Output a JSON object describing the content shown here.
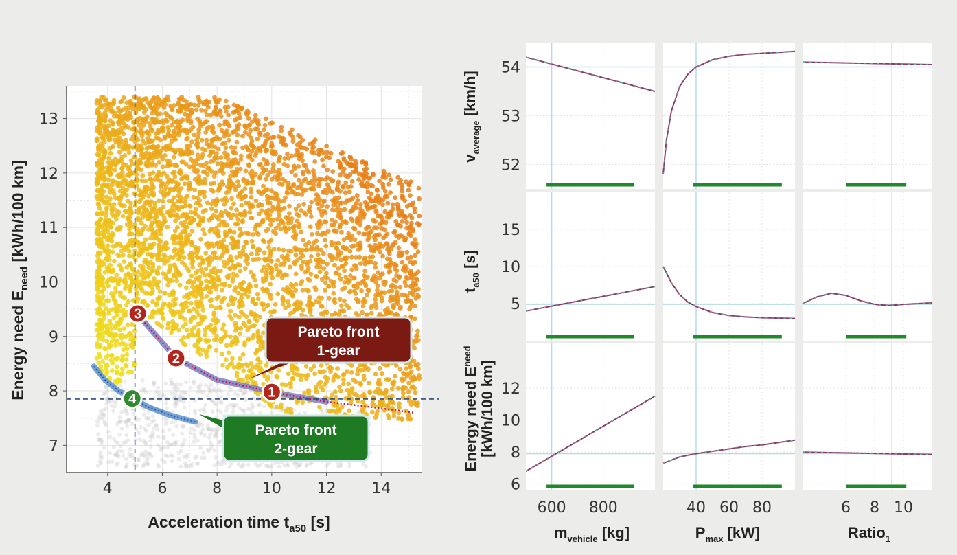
{
  "colors": {
    "background": "#ececeb",
    "panel": "#ffffff",
    "grid": "#e3e3e3",
    "scatter_low": "#f0ea1a",
    "scatter_high": "#e8801a",
    "dominated": "#c8c8c8",
    "front_1gear": "#7b7fc4",
    "front_1gear_line": "#c2185b",
    "front_2gear": "#5a8fcf",
    "callout_1gear": "#7a1a12",
    "callout_2gear": "#1e7a23",
    "marker_red": "#b3261e",
    "marker_green": "#2e8b2e",
    "ref_line": "#2d4a7a",
    "trace": "#8b3a6b",
    "range_bar": "#1f8a2a",
    "crosshair": "#b7dbe6"
  },
  "chart_data": [
    {
      "type": "scatter",
      "xlabel": "Acceleration time t",
      "xlabel_sub": "a50",
      "xlabel_unit": " [s]",
      "ylabel": "Energy need E",
      "ylabel_sub": "need",
      "ylabel_unit": " [kWh/100 km]",
      "xlim": [
        2.5,
        15.5
      ],
      "ylim": [
        6.5,
        13.6
      ],
      "xticks": [
        4,
        6,
        8,
        10,
        12,
        14
      ],
      "yticks": [
        7,
        8,
        9,
        10,
        11,
        12,
        13
      ],
      "reference_lines": {
        "x": 5,
        "y": 7.85
      },
      "pareto_front_1gear": {
        "label_line1": "Pareto front",
        "label_line2": "1-gear",
        "x": [
          5.1,
          6.5,
          8.0,
          10.0,
          12.0,
          14.0,
          15.2
        ],
        "y": [
          9.4,
          8.6,
          8.2,
          7.98,
          7.8,
          7.68,
          7.6
        ]
      },
      "pareto_front_2gear": {
        "label_line1": "Pareto front",
        "label_line2": "2-gear",
        "x": [
          3.5,
          3.9,
          4.4,
          4.9,
          5.5,
          6.3,
          7.2
        ],
        "y": [
          8.45,
          8.2,
          8.0,
          7.86,
          7.7,
          7.55,
          7.43
        ]
      },
      "markers": [
        {
          "label": "1",
          "x": 10.0,
          "y": 7.98,
          "color": "red"
        },
        {
          "label": "2",
          "x": 6.5,
          "y": 8.6,
          "color": "red"
        },
        {
          "label": "3",
          "x": 5.1,
          "y": 9.42,
          "color": "red"
        },
        {
          "label": "4",
          "x": 4.9,
          "y": 7.86,
          "color": "green"
        }
      ]
    },
    {
      "type": "line",
      "description_grid": "sensitivity plot matrix",
      "rows": [
        {
          "ylabel": "v",
          "ylabel_sub": "average",
          "ylabel_unit": " [km/h]",
          "ylim": [
            51.5,
            54.5
          ],
          "yticks": [
            52,
            53,
            54
          ],
          "ref_y": 54.0
        },
        {
          "ylabel": "t",
          "ylabel_sub": "a50",
          "ylabel_unit": " [s]",
          "ylim": [
            0,
            20
          ],
          "yticks": [
            5,
            10,
            15
          ],
          "ref_y": 4.9
        },
        {
          "ylabel": "Energy need E",
          "ylabel_sub": "need",
          "ylabel_unit": "[kWh/100 km]",
          "ylim": [
            5.6,
            14.8
          ],
          "yticks": [
            6,
            8,
            10,
            12
          ],
          "ref_y": 7.9
        }
      ],
      "columns": [
        {
          "xlabel": "m",
          "xlabel_sub": "vehicle",
          "xlabel_unit": " [kg]",
          "xlim": [
            500,
            1000
          ],
          "xticks": [
            600,
            800
          ],
          "ref_x": 600,
          "range": [
            580,
            920
          ],
          "series": [
            {
              "x": [
                500,
                1000
              ],
              "y": [
                54.2,
                53.5
              ]
            },
            {
              "x": [
                500,
                1000
              ],
              "y": [
                4.0,
                7.3
              ]
            },
            {
              "x": [
                500,
                1000
              ],
              "y": [
                6.8,
                11.5
              ]
            }
          ]
        },
        {
          "xlabel": "P",
          "xlabel_sub": "max",
          "xlabel_unit": " [kW]",
          "xlim": [
            20,
            100
          ],
          "xticks": [
            40,
            60,
            80
          ],
          "ref_x": 40,
          "range": [
            38,
            92
          ],
          "series": [
            {
              "x": [
                20,
                22,
                25,
                30,
                35,
                40,
                50,
                60,
                70,
                80,
                90,
                100
              ],
              "y": [
                51.8,
                52.5,
                53.1,
                53.6,
                53.85,
                54.0,
                54.15,
                54.22,
                54.26,
                54.28,
                54.3,
                54.32
              ]
            },
            {
              "x": [
                20,
                25,
                30,
                35,
                40,
                50,
                60,
                70,
                80,
                90,
                100
              ],
              "y": [
                10.0,
                7.8,
                6.2,
                5.2,
                4.6,
                3.8,
                3.4,
                3.2,
                3.1,
                3.05,
                3.0
              ]
            },
            {
              "x": [
                20,
                30,
                40,
                50,
                60,
                70,
                80,
                90,
                100
              ],
              "y": [
                7.3,
                7.7,
                7.9,
                8.05,
                8.2,
                8.35,
                8.45,
                8.6,
                8.75
              ]
            }
          ]
        },
        {
          "xlabel": "Ratio",
          "xlabel_sub": "1",
          "xlabel_unit": "",
          "xlim": [
            3,
            12
          ],
          "xticks": [
            6,
            8,
            10
          ],
          "ref_x": 9.2,
          "range": [
            6.0,
            10.2
          ],
          "series": [
            {
              "x": [
                3,
                12
              ],
              "y": [
                54.1,
                54.05
              ]
            },
            {
              "x": [
                3,
                4,
                5,
                6,
                7,
                8,
                9,
                10,
                11,
                12
              ],
              "y": [
                5.0,
                5.9,
                6.4,
                6.1,
                5.4,
                4.9,
                4.75,
                4.9,
                5.0,
                5.1
              ]
            },
            {
              "x": [
                3,
                12
              ],
              "y": [
                8.0,
                7.85
              ]
            }
          ]
        }
      ]
    }
  ]
}
